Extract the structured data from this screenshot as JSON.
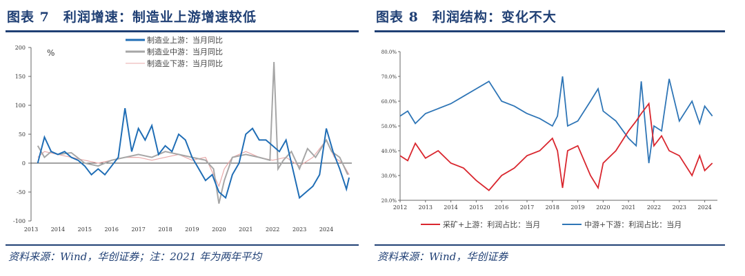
{
  "left": {
    "title": "图表 7　利润增速：制造业上游增速较低",
    "source": "资料来源：Wind，华创证券；注：2021 年为两年平均"
  },
  "right": {
    "title": "图表 8　利润结构：变化不大",
    "source": "资料来源：Wind，华创证券"
  },
  "chart_data": [
    {
      "type": "line",
      "unit": "%",
      "ylim": [
        -100,
        200
      ],
      "yticks": [
        200,
        150,
        100,
        50,
        0,
        -50,
        -100
      ],
      "xticks": [
        "2013",
        "2014",
        "2015",
        "2016",
        "2017",
        "2018",
        "2019",
        "2020",
        "2021",
        "2022",
        "2023",
        "2024"
      ],
      "xlim": [
        2013,
        2024.95
      ],
      "legend": "top-center",
      "series": [
        {
          "name": "制造业上游：当月同比",
          "color": "#1f6db5",
          "x": [
            2013.25,
            2013.5,
            2013.75,
            2014,
            2014.25,
            2014.5,
            2014.75,
            2015,
            2015.25,
            2015.5,
            2015.75,
            2016,
            2016.25,
            2016.5,
            2016.75,
            2017,
            2017.25,
            2017.5,
            2017.75,
            2018,
            2018.25,
            2018.5,
            2018.75,
            2019,
            2019.25,
            2019.5,
            2019.75,
            2020,
            2020.25,
            2020.5,
            2020.75,
            2021,
            2021.25,
            2021.5,
            2021.75,
            2022,
            2022.25,
            2022.5,
            2022.75,
            2023,
            2023.25,
            2023.5,
            2023.75,
            2024,
            2024.25,
            2024.5,
            2024.75,
            2024.85
          ],
          "y": [
            0,
            45,
            20,
            15,
            20,
            10,
            5,
            -5,
            -20,
            -10,
            -20,
            -5,
            10,
            95,
            20,
            60,
            40,
            65,
            15,
            30,
            20,
            50,
            40,
            10,
            -10,
            -30,
            -20,
            -50,
            -60,
            -20,
            0,
            50,
            60,
            40,
            40,
            30,
            20,
            40,
            -10,
            -60,
            -50,
            -40,
            -20,
            60,
            20,
            -10,
            -45,
            -25
          ]
        },
        {
          "name": "制造业中游：当月同比",
          "color": "#a6a6a6",
          "x": [
            2013.25,
            2013.5,
            2013.75,
            2014,
            2014.5,
            2015,
            2015.5,
            2016,
            2016.5,
            2017,
            2017.5,
            2018,
            2018.5,
            2019,
            2019.5,
            2019.8,
            2020,
            2020.2,
            2020.5,
            2021,
            2021.5,
            2021.9,
            2022.05,
            2022.2,
            2022.4,
            2022.7,
            2023,
            2023.3,
            2023.6,
            2024,
            2024.2,
            2024.5,
            2024.8
          ],
          "y": [
            30,
            10,
            20,
            15,
            18,
            0,
            -5,
            5,
            10,
            15,
            10,
            20,
            15,
            10,
            5,
            -10,
            -70,
            -30,
            10,
            15,
            10,
            5,
            175,
            -10,
            5,
            20,
            -10,
            25,
            10,
            40,
            20,
            10,
            -20
          ]
        },
        {
          "name": "制造业下游：当月同比",
          "color": "#e8a8a8",
          "x": [
            2013.25,
            2013.5,
            2014,
            2014.5,
            2015,
            2015.5,
            2016,
            2016.5,
            2017,
            2017.5,
            2018,
            2018.5,
            2019,
            2019.5,
            2020,
            2020.2,
            2020.5,
            2021,
            2021.5,
            2022,
            2022.5,
            2023,
            2023.5,
            2024,
            2024.3,
            2024.6,
            2024.85
          ],
          "y": [
            10,
            20,
            15,
            10,
            5,
            0,
            5,
            10,
            10,
            5,
            10,
            15,
            5,
            10,
            -40,
            -10,
            10,
            20,
            10,
            5,
            10,
            -5,
            10,
            40,
            10,
            0,
            -20
          ]
        }
      ]
    },
    {
      "type": "line",
      "ylim": [
        20,
        80
      ],
      "yticks": [
        "80.0%",
        "70.0%",
        "60.0%",
        "50.0%",
        "40.0%",
        "30.0%",
        "20.0%"
      ],
      "xticks": [
        "2012",
        "2013",
        "2014",
        "2015",
        "2016",
        "2017",
        "2018",
        "2019",
        "2020",
        "2021",
        "2022",
        "2023",
        "2024"
      ],
      "xlim": [
        2012,
        2024.5
      ],
      "legend": "bottom",
      "series": [
        {
          "name": "采矿+上游：利润占比：当月",
          "color": "#d9262e",
          "x": [
            2012,
            2012.3,
            2012.6,
            2013,
            2013.5,
            2014,
            2014.5,
            2015,
            2015.5,
            2016,
            2016.5,
            2017,
            2017.5,
            2018,
            2018.2,
            2018.4,
            2018.6,
            2019,
            2019.5,
            2019.8,
            2020,
            2020.5,
            2021,
            2021.3,
            2021.5,
            2021.8,
            2022,
            2022.3,
            2022.6,
            2023,
            2023.5,
            2023.8,
            2024,
            2024.3
          ],
          "y": [
            38,
            36,
            43,
            37,
            40,
            35,
            33,
            28,
            24,
            30,
            33,
            38,
            40,
            45,
            40,
            25,
            40,
            42,
            30,
            25,
            35,
            40,
            48,
            52,
            55,
            59,
            42,
            46,
            40,
            38,
            30,
            38,
            32,
            35
          ]
        },
        {
          "name": "中游+下游：利润占比：当月",
          "color": "#2e75b6",
          "x": [
            2012,
            2012.3,
            2012.6,
            2013,
            2013.5,
            2014,
            2014.5,
            2015,
            2015.5,
            2016,
            2016.5,
            2017,
            2017.5,
            2018,
            2018.2,
            2018.4,
            2018.6,
            2019,
            2019.5,
            2019.8,
            2020,
            2020.5,
            2021,
            2021.3,
            2021.5,
            2021.8,
            2022,
            2022.3,
            2022.6,
            2023,
            2023.5,
            2023.8,
            2024,
            2024.3
          ],
          "y": [
            54,
            56,
            51,
            55,
            57,
            59,
            62,
            65,
            68,
            60,
            58,
            55,
            53,
            50,
            54,
            70,
            50,
            52,
            60,
            65,
            56,
            52,
            45,
            42,
            68,
            35,
            50,
            48,
            69,
            52,
            60,
            51,
            58,
            54
          ]
        }
      ]
    }
  ]
}
